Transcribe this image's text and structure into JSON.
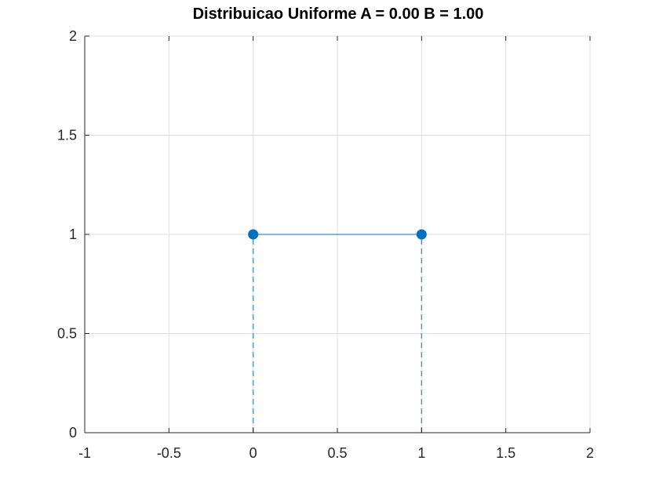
{
  "chart_data": {
    "type": "line",
    "title": "Distribuicao Uniforme A = 0.00  B = 1.00",
    "xlabel": "",
    "ylabel": "",
    "xlim": [
      -1,
      2
    ],
    "ylim": [
      0,
      2
    ],
    "xticks": [
      -1,
      -0.5,
      0,
      0.5,
      1,
      1.5,
      2
    ],
    "xtick_labels": [
      "-1",
      "-0.5",
      "0",
      "0.5",
      "1",
      "1.5",
      "2"
    ],
    "yticks": [
      0,
      0.5,
      1,
      1.5,
      2
    ],
    "ytick_labels": [
      "0",
      "0.5",
      "1",
      "1.5",
      "2"
    ],
    "grid": true,
    "series": [
      {
        "style": "solid-with-markers",
        "x": [
          0,
          1
        ],
        "y": [
          1,
          1
        ]
      }
    ],
    "stems": [
      {
        "x": 0,
        "y": 1
      },
      {
        "x": 1,
        "y": 1
      }
    ],
    "colors": {
      "line": "#0072BD",
      "marker": "#0072BD",
      "stem": "#4A9ACB",
      "grid": "#DFDFDF",
      "axis": "#262626"
    }
  }
}
